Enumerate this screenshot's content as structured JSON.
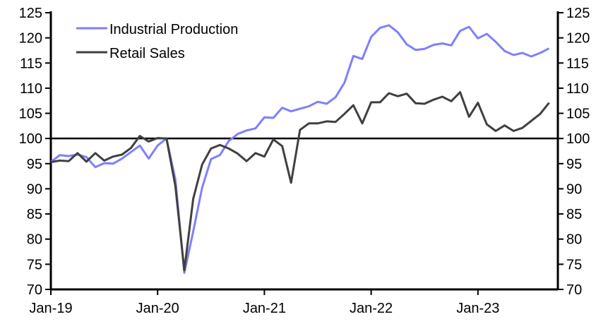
{
  "chart_data": {
    "type": "line",
    "title": "",
    "xlabel": "",
    "ylabel": "",
    "ylim": [
      70,
      125
    ],
    "yticks": [
      70,
      75,
      80,
      85,
      90,
      95,
      100,
      105,
      110,
      115,
      120,
      125
    ],
    "y2ticks": [
      70,
      75,
      80,
      85,
      90,
      95,
      100,
      105,
      110,
      115,
      120,
      125
    ],
    "xtick_labels": [
      "Jan-19",
      "Jan-20",
      "Jan-21",
      "Jan-22",
      "Jan-23"
    ],
    "x_start": "Jan-19",
    "x_end": "Sep-23",
    "reference_line": 100,
    "legend_position": "top-left",
    "grid": false,
    "series": [
      {
        "name": "Industrial Production",
        "color": "#7f7fff",
        "values": [
          95.3,
          96.7,
          96.5,
          96.8,
          96.3,
          94.3,
          95.1,
          95.0,
          96.0,
          97.3,
          98.6,
          96.0,
          98.6,
          100.0,
          91.8,
          73.3,
          81.5,
          90.2,
          95.9,
          96.7,
          99.5,
          100.9,
          101.6,
          102.0,
          104.2,
          104.1,
          106.1,
          105.4,
          105.9,
          106.4,
          107.3,
          106.9,
          108.2,
          111.1,
          116.4,
          115.8,
          120.2,
          122.0,
          122.5,
          121.1,
          118.7,
          117.6,
          117.8,
          118.6,
          118.9,
          118.5,
          121.4,
          122.2,
          119.9,
          120.8,
          119.2,
          117.4,
          116.6,
          117.0,
          116.3,
          117.0,
          117.9
        ]
      },
      {
        "name": "Retail Sales",
        "color": "#404040",
        "values": [
          95.3,
          95.6,
          95.5,
          97.1,
          95.4,
          97.1,
          95.6,
          96.4,
          96.8,
          98.1,
          100.5,
          99.4,
          100.1,
          100.0,
          90.5,
          73.8,
          88.0,
          94.8,
          98.0,
          98.7,
          98.0,
          97.0,
          95.5,
          97.1,
          96.4,
          99.8,
          98.5,
          91.2,
          101.7,
          103.0,
          103.0,
          103.4,
          103.3,
          104.9,
          106.6,
          103.0,
          107.2,
          107.2,
          109.0,
          108.4,
          108.9,
          107.0,
          106.9,
          107.7,
          108.3,
          107.4,
          109.2,
          104.3,
          107.1,
          102.8,
          101.5,
          102.6,
          101.5,
          102.1,
          103.5,
          104.9,
          107.1
        ]
      }
    ]
  }
}
